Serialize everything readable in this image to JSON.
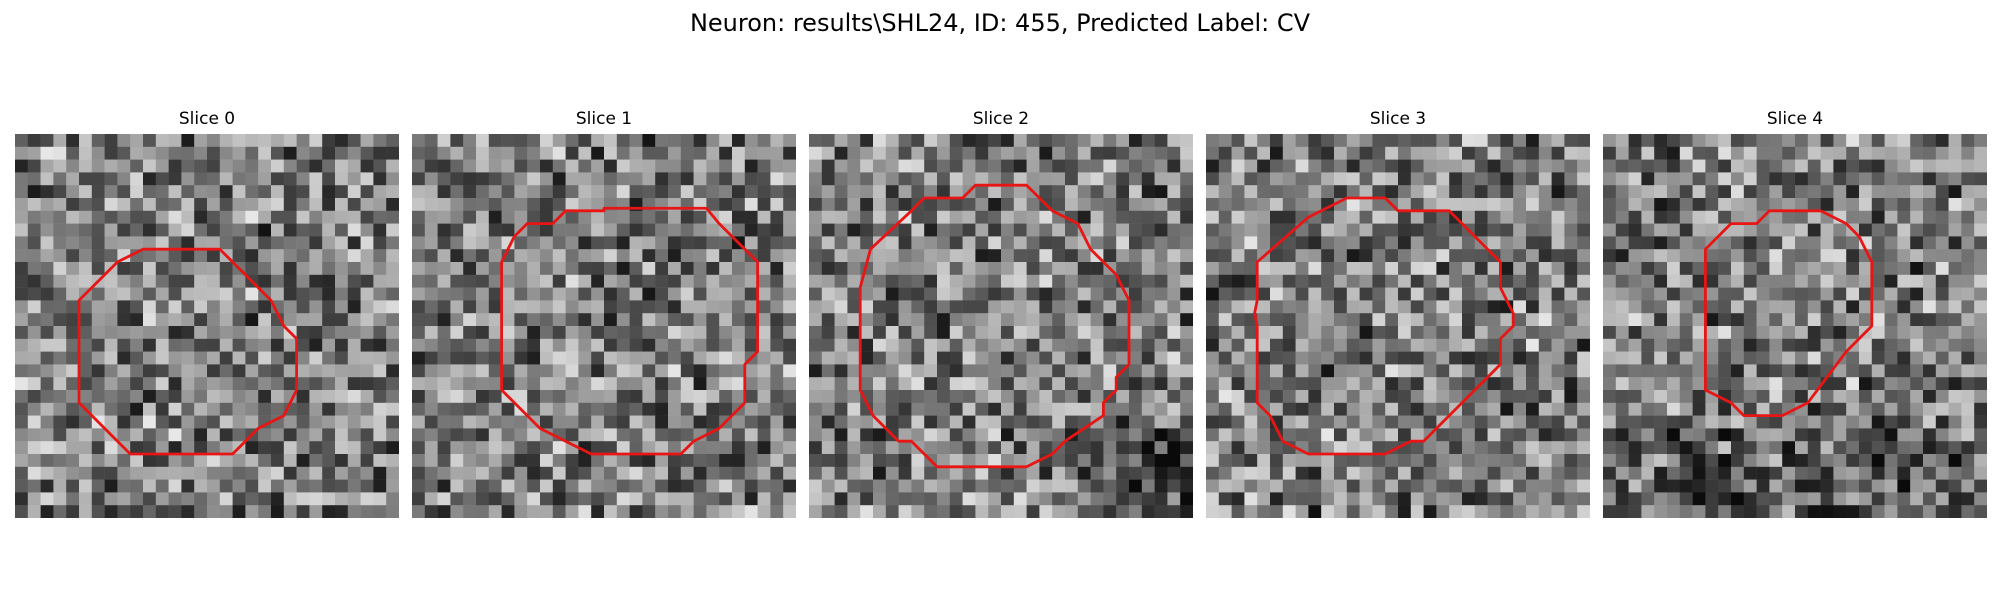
{
  "figure": {
    "title": "Neuron: results\\SHL24, ID: 455, Predicted Label: CV"
  },
  "panels": [
    {
      "label": "Slice 0",
      "contour_color": "#e81515"
    },
    {
      "label": "Slice 1",
      "contour_color": "#e81515"
    },
    {
      "label": "Slice 2",
      "contour_color": "#e81515"
    },
    {
      "label": "Slice 3",
      "contour_color": "#e81515"
    },
    {
      "label": "Slice 4",
      "contour_color": "#e81515"
    }
  ]
}
